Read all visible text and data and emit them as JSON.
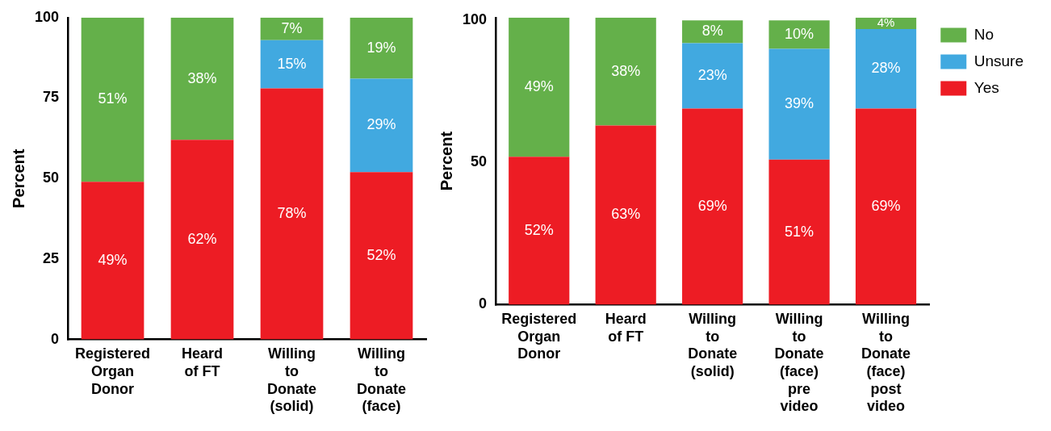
{
  "chart_data": [
    {
      "type": "bar",
      "stacked": true,
      "ylabel": "Percent",
      "categories": [
        "Registered\nOrgan\nDonor",
        "Heard\nof FT",
        "Willing\nto\nDonate\n(solid)",
        "Willing\nto\nDonate\n(face)"
      ],
      "ylim": [
        0,
        100
      ],
      "yticks": [
        0,
        25,
        50,
        75,
        100
      ],
      "grid": false,
      "legend": false,
      "series": [
        {
          "color": "#ed1c24",
          "values": [
            49,
            62,
            78,
            52
          ],
          "value_labels": [
            "49%",
            "62%",
            "78%",
            "52%"
          ]
        },
        {
          "color": "#41a9e0",
          "values": [
            null,
            null,
            15,
            29
          ],
          "value_labels": [
            null,
            null,
            "15%",
            "29%"
          ]
        },
        {
          "color": "#64b04a",
          "values": [
            51,
            38,
            7,
            19
          ],
          "value_labels": [
            "51%",
            "38%",
            "7%",
            "19%"
          ]
        }
      ]
    },
    {
      "type": "bar",
      "stacked": true,
      "ylabel": "Percent",
      "categories": [
        "Registered\nOrgan\nDonor",
        "Heard\nof FT",
        "Willing\nto\nDonate\n(solid)",
        "Willing\nto\nDonate\n(face)\npre\nvideo",
        "Willing\nto\nDonate\n(face)\npost\nvideo"
      ],
      "ylim": [
        0,
        101
      ],
      "yticks": [
        0,
        50,
        100
      ],
      "grid": false,
      "legend": "right",
      "series": [
        {
          "name": "Yes",
          "color": "#ed1c24",
          "values": [
            52,
            63,
            69,
            51,
            69
          ],
          "value_labels": [
            "52%",
            "63%",
            "69%",
            "51%",
            "69%"
          ]
        },
        {
          "name": "Unsure",
          "color": "#41a9e0",
          "values": [
            null,
            null,
            23,
            39,
            28
          ],
          "value_labels": [
            null,
            null,
            "23%",
            "39%",
            "28%"
          ]
        },
        {
          "name": "No",
          "color": "#64b04a",
          "values": [
            49,
            38,
            8,
            10,
            4
          ],
          "value_labels": [
            "49%",
            "38%",
            "8%",
            "10%",
            "4%"
          ]
        }
      ]
    }
  ]
}
